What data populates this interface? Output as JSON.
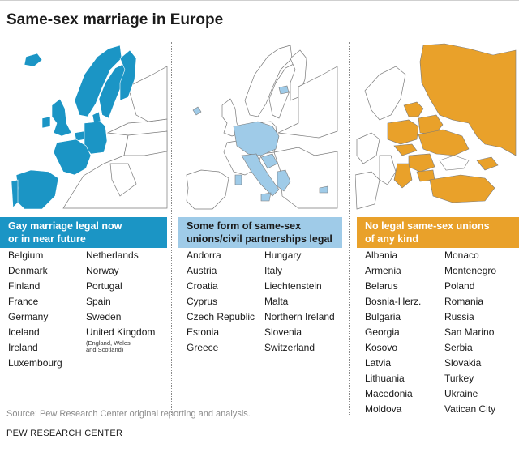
{
  "title": "Same-sex marriage in Europe",
  "colors": {
    "legal": "#1b95c5",
    "partnership": "#9fcbe8",
    "none": "#e9a12a",
    "outline": "#7a7a7a"
  },
  "panels": [
    {
      "header_line1": "Gay marriage legal now",
      "header_line2": "or in near future",
      "col1": [
        "Belgium",
        "Denmark",
        "Finland",
        "France",
        "Germany",
        "Iceland",
        "Ireland",
        "Luxembourg"
      ],
      "col2": [
        "Netherlands",
        "Norway",
        "Portugal",
        "Spain",
        "Sweden",
        "United Kingdom"
      ],
      "uk_note_line1": "(England, Wales",
      "uk_note_line2": "and Scotland)"
    },
    {
      "header_line1": "Some form of same-sex",
      "header_line2": "unions/civil partnerships legal",
      "col1": [
        "Andorra",
        "Austria",
        "Croatia",
        "Cyprus",
        "Czech Republic",
        "Estonia",
        "Greece"
      ],
      "col2": [
        "Hungary",
        "Italy",
        "Liechtenstein",
        "Malta",
        "Northern Ireland",
        "Slovenia",
        "Switzerland"
      ]
    },
    {
      "header_line1": "No legal same-sex unions",
      "header_line2": "of any kind",
      "col1": [
        "Albania",
        "Armenia",
        "Belarus",
        "Bosnia-Herz.",
        "Bulgaria",
        "Georgia",
        "Kosovo",
        "Latvia",
        "Lithuania",
        "Macedonia",
        "Moldova"
      ],
      "col2": [
        "Monaco",
        "Montenegro",
        "Poland",
        "Romania",
        "Russia",
        "San Marino",
        "Serbia",
        "Slovakia",
        "Turkey",
        "Ukraine",
        "Vatican City"
      ]
    }
  ],
  "source": "Source: Pew Research Center original reporting and analysis.",
  "credit": "PEW RESEARCH CENTER"
}
